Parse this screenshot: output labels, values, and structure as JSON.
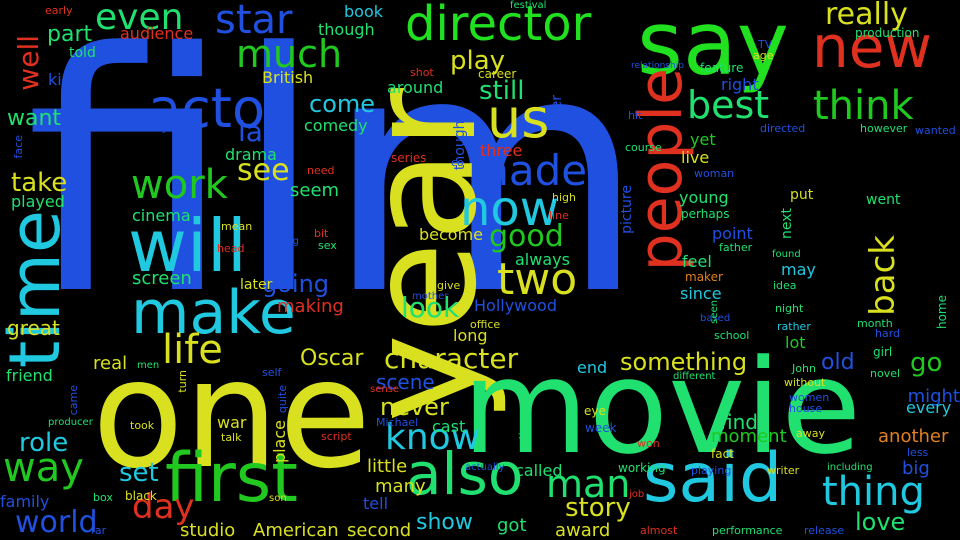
{
  "words": [
    {
      "text": "film",
      "color": "#2050e0"
    },
    {
      "text": "year",
      "color": "#d8e020"
    },
    {
      "text": "one",
      "color": "#d8e020"
    },
    {
      "text": "movie",
      "color": "#20e070"
    },
    {
      "text": "say",
      "color": "#20e020"
    },
    {
      "text": "time",
      "color": "#20c8e0"
    },
    {
      "text": "will",
      "color": "#20c8e0"
    },
    {
      "text": "people",
      "color": "#e03020"
    },
    {
      "text": "said",
      "color": "#20c8e0"
    },
    {
      "text": "first",
      "color": "#20c820"
    },
    {
      "text": "also",
      "color": "#20e070"
    },
    {
      "text": "new",
      "color": "#e03020"
    },
    {
      "text": "make",
      "color": "#20c8e0"
    },
    {
      "text": "actor",
      "color": "#2050e0"
    },
    {
      "text": "director",
      "color": "#20e020"
    },
    {
      "text": "us",
      "color": "#d8e020"
    },
    {
      "text": "now",
      "color": "#20c8e0"
    },
    {
      "text": "made",
      "color": "#2050e0"
    },
    {
      "text": "two",
      "color": "#d8e020"
    },
    {
      "text": "best",
      "color": "#20e070"
    },
    {
      "text": "think",
      "color": "#20c820"
    },
    {
      "text": "work",
      "color": "#20c820"
    },
    {
      "text": "way",
      "color": "#20c820"
    },
    {
      "text": "thing",
      "color": "#20c8e0"
    },
    {
      "text": "man",
      "color": "#20e070"
    },
    {
      "text": "star",
      "color": "#2050e0"
    },
    {
      "text": "much",
      "color": "#20c820"
    },
    {
      "text": "even",
      "color": "#20e070"
    },
    {
      "text": "life",
      "color": "#d8e020"
    },
    {
      "text": "know",
      "color": "#20c8e0"
    },
    {
      "text": "good",
      "color": "#20c820"
    },
    {
      "text": "back",
      "color": "#d8e020"
    },
    {
      "text": "see",
      "color": "#d8e020"
    },
    {
      "text": "really",
      "color": "#d8e020"
    },
    {
      "text": "last",
      "color": "#2050e0"
    },
    {
      "text": "character",
      "color": "#d8e020"
    },
    {
      "text": "day",
      "color": "#e03020"
    },
    {
      "text": "world",
      "color": "#2050e0"
    },
    {
      "text": "well",
      "color": "#e03020"
    },
    {
      "text": "story",
      "color": "#d8e020"
    },
    {
      "text": "take",
      "color": "#d8e020"
    },
    {
      "text": "role",
      "color": "#20c8e0"
    },
    {
      "text": "play",
      "color": "#d8e020"
    },
    {
      "text": "still",
      "color": "#20e070"
    },
    {
      "text": "something",
      "color": "#d8e020"
    },
    {
      "text": "look",
      "color": "#20e070"
    },
    {
      "text": "going",
      "color": "#2050e0"
    },
    {
      "text": "come",
      "color": "#20c8e0"
    },
    {
      "text": "never",
      "color": "#d8e020"
    },
    {
      "text": "scene",
      "color": "#2050e0"
    },
    {
      "text": "Oscar",
      "color": "#d8e020"
    },
    {
      "text": "set",
      "color": "#20c8e0"
    },
    {
      "text": "love",
      "color": "#20e070"
    },
    {
      "text": "show",
      "color": "#20c8e0"
    },
    {
      "text": "go",
      "color": "#20c820"
    },
    {
      "text": "old",
      "color": "#2050e0"
    },
    {
      "text": "part",
      "color": "#20e070"
    },
    {
      "text": "want",
      "color": "#20e070"
    },
    {
      "text": "screen",
      "color": "#20e070"
    },
    {
      "text": "seem",
      "color": "#20e070"
    },
    {
      "text": "making",
      "color": "#e03020"
    },
    {
      "text": "played",
      "color": "#20e070"
    },
    {
      "text": "great",
      "color": "#d8e020"
    },
    {
      "text": "friend",
      "color": "#20e070"
    },
    {
      "text": "real",
      "color": "#d8e020"
    },
    {
      "text": "little",
      "color": "#d8e020"
    },
    {
      "text": "find",
      "color": "#20e070"
    },
    {
      "text": "moment",
      "color": "#20c820"
    },
    {
      "text": "another",
      "color": "#e08020"
    },
    {
      "text": "might",
      "color": "#2050e0"
    },
    {
      "text": "every",
      "color": "#20c8e0"
    },
    {
      "text": "big",
      "color": "#2050e0"
    },
    {
      "text": "family",
      "color": "#2050e0"
    },
    {
      "text": "studio",
      "color": "#d8e020"
    },
    {
      "text": "American",
      "color": "#d8e020"
    },
    {
      "text": "second",
      "color": "#d8e020"
    },
    {
      "text": "award",
      "color": "#d8e020"
    },
    {
      "text": "got",
      "color": "#20e070"
    },
    {
      "text": "many",
      "color": "#d8e020"
    },
    {
      "text": "tell",
      "color": "#2050e0"
    },
    {
      "text": "called",
      "color": "#20e070"
    },
    {
      "text": "cast",
      "color": "#20e070"
    },
    {
      "text": "war",
      "color": "#d8e020"
    },
    {
      "text": "place",
      "color": "#d8e020"
    },
    {
      "text": "drama",
      "color": "#20e070"
    },
    {
      "text": "comedy",
      "color": "#20e070"
    },
    {
      "text": "British",
      "color": "#d8e020"
    },
    {
      "text": "cinema",
      "color": "#20e070"
    },
    {
      "text": "later",
      "color": "#d8e020"
    },
    {
      "text": "become",
      "color": "#d8e020"
    },
    {
      "text": "always",
      "color": "#20e070"
    },
    {
      "text": "Hollywood",
      "color": "#2050e0"
    },
    {
      "text": "long",
      "color": "#d8e020"
    },
    {
      "text": "end",
      "color": "#20c8e0"
    },
    {
      "text": "three",
      "color": "#e03020"
    },
    {
      "text": "though",
      "color": "#20e070"
    },
    {
      "text": "book",
      "color": "#20c8e0"
    },
    {
      "text": "around",
      "color": "#20e070"
    },
    {
      "text": "audience",
      "color": "#e03020"
    },
    {
      "text": "told",
      "color": "#20e070"
    },
    {
      "text": "kind",
      "color": "#2050e0"
    },
    {
      "text": "feel",
      "color": "#20e070"
    },
    {
      "text": "point",
      "color": "#2050e0"
    },
    {
      "text": "young",
      "color": "#20e070"
    },
    {
      "text": "since",
      "color": "#20c8e0"
    },
    {
      "text": "may",
      "color": "#20c8e0"
    },
    {
      "text": "lot",
      "color": "#20c820"
    },
    {
      "text": "live",
      "color": "#d8e020"
    },
    {
      "text": "yet",
      "color": "#20c820"
    },
    {
      "text": "right",
      "color": "#2050e0"
    },
    {
      "text": "picture",
      "color": "#2050e0"
    },
    {
      "text": "next",
      "color": "#20e070"
    },
    {
      "text": "put",
      "color": "#d8e020"
    },
    {
      "text": "went",
      "color": "#20e070"
    },
    {
      "text": "perhaps",
      "color": "#20e070"
    },
    {
      "text": "whose",
      "color": "#2050e0"
    },
    {
      "text": "ever",
      "color": "#2050e0"
    },
    {
      "text": "thought",
      "color": "#2050e0"
    },
    {
      "text": "early",
      "color": "#e03020"
    },
    {
      "text": "festival",
      "color": "#20e070"
    },
    {
      "text": "production",
      "color": "#20e070"
    },
    {
      "text": "career",
      "color": "#d8e020"
    },
    {
      "text": "shot",
      "color": "#e03020"
    },
    {
      "text": "feature",
      "color": "#20e070"
    },
    {
      "text": "TV",
      "color": "#2050e0"
    },
    {
      "text": "age",
      "color": "#d8e020"
    },
    {
      "text": "relationship",
      "color": "#2050e0"
    },
    {
      "text": "guy",
      "color": "#2050e0"
    },
    {
      "text": "everything",
      "color": "#2050e0"
    },
    {
      "text": "hit",
      "color": "#2050e0"
    },
    {
      "text": "directed",
      "color": "#2050e0"
    },
    {
      "text": "however",
      "color": "#20e070"
    },
    {
      "text": "wanted",
      "color": "#2050e0"
    },
    {
      "text": "face",
      "color": "#2050e0"
    },
    {
      "text": "series",
      "color": "#e03020"
    },
    {
      "text": "co",
      "color": "#2050e0"
    },
    {
      "text": "course",
      "color": "#20e070"
    },
    {
      "text": "woman",
      "color": "#2050e0"
    },
    {
      "text": "need",
      "color": "#e03020"
    },
    {
      "text": "high",
      "color": "#d8e020"
    },
    {
      "text": "line",
      "color": "#e03020"
    },
    {
      "text": "mean",
      "color": "#d8e020"
    },
    {
      "text": "head",
      "color": "#e03020"
    },
    {
      "text": "acting",
      "color": "#2050e0"
    },
    {
      "text": "bit",
      "color": "#e03020"
    },
    {
      "text": "sex",
      "color": "#20e070"
    },
    {
      "text": "word",
      "color": "#2050e0"
    },
    {
      "text": "father",
      "color": "#20e070"
    },
    {
      "text": "found",
      "color": "#20e070"
    },
    {
      "text": "maker",
      "color": "#e08020"
    },
    {
      "text": "idea",
      "color": "#20e070"
    },
    {
      "text": "give",
      "color": "#d8e020"
    },
    {
      "text": "mother",
      "color": "#2050e0"
    },
    {
      "text": "office",
      "color": "#d8e020"
    },
    {
      "text": "based",
      "color": "#2050e0"
    },
    {
      "text": "seen",
      "color": "#20e070"
    },
    {
      "text": "school",
      "color": "#20e070"
    },
    {
      "text": "night",
      "color": "#20e070"
    },
    {
      "text": "month",
      "color": "#20e070"
    },
    {
      "text": "rather",
      "color": "#20c8e0"
    },
    {
      "text": "hard",
      "color": "#2050e0"
    },
    {
      "text": "home",
      "color": "#20e070"
    },
    {
      "text": "girl",
      "color": "#20e070"
    },
    {
      "text": "John",
      "color": "#20e070"
    },
    {
      "text": "novel",
      "color": "#20e070"
    },
    {
      "text": "without",
      "color": "#d8e020"
    },
    {
      "text": "women",
      "color": "#2050e0"
    },
    {
      "text": "house",
      "color": "#2050e0"
    },
    {
      "text": "different",
      "color": "#20e070"
    },
    {
      "text": "men",
      "color": "#20e070"
    },
    {
      "text": "turn",
      "color": "#d8e020"
    },
    {
      "text": "self",
      "color": "#2050e0"
    },
    {
      "text": "came",
      "color": "#2050e0"
    },
    {
      "text": "quite",
      "color": "#2050e0"
    },
    {
      "text": "sense",
      "color": "#e03020"
    },
    {
      "text": "Michael",
      "color": "#2050e0"
    },
    {
      "text": "producer",
      "color": "#20e070"
    },
    {
      "text": "took",
      "color": "#d8e020"
    },
    {
      "text": "talk",
      "color": "#d8e020"
    },
    {
      "text": "script",
      "color": "#e03020"
    },
    {
      "text": "eye",
      "color": "#d8e020"
    },
    {
      "text": "week",
      "color": "#2050e0"
    },
    {
      "text": "won",
      "color": "#e03020"
    },
    {
      "text": "fact",
      "color": "#d8e020"
    },
    {
      "text": "away",
      "color": "#d8e020"
    },
    {
      "text": "less",
      "color": "#2050e0"
    },
    {
      "text": "including",
      "color": "#20e070"
    },
    {
      "text": "writer",
      "color": "#d8e020"
    },
    {
      "text": "playing",
      "color": "#2050e0"
    },
    {
      "text": "working",
      "color": "#20e070"
    },
    {
      "text": "actually",
      "color": "#2050e0"
    },
    {
      "text": "action",
      "color": "#20e070"
    },
    {
      "text": "black",
      "color": "#d8e020"
    },
    {
      "text": "box",
      "color": "#20e070"
    },
    {
      "text": "far",
      "color": "#2050e0"
    },
    {
      "text": "son",
      "color": "#d8e020"
    },
    {
      "text": "job",
      "color": "#e03020"
    },
    {
      "text": "almost",
      "color": "#e03020"
    },
    {
      "text": "performance",
      "color": "#20e070"
    },
    {
      "text": "release",
      "color": "#2050e0"
    }
  ]
}
